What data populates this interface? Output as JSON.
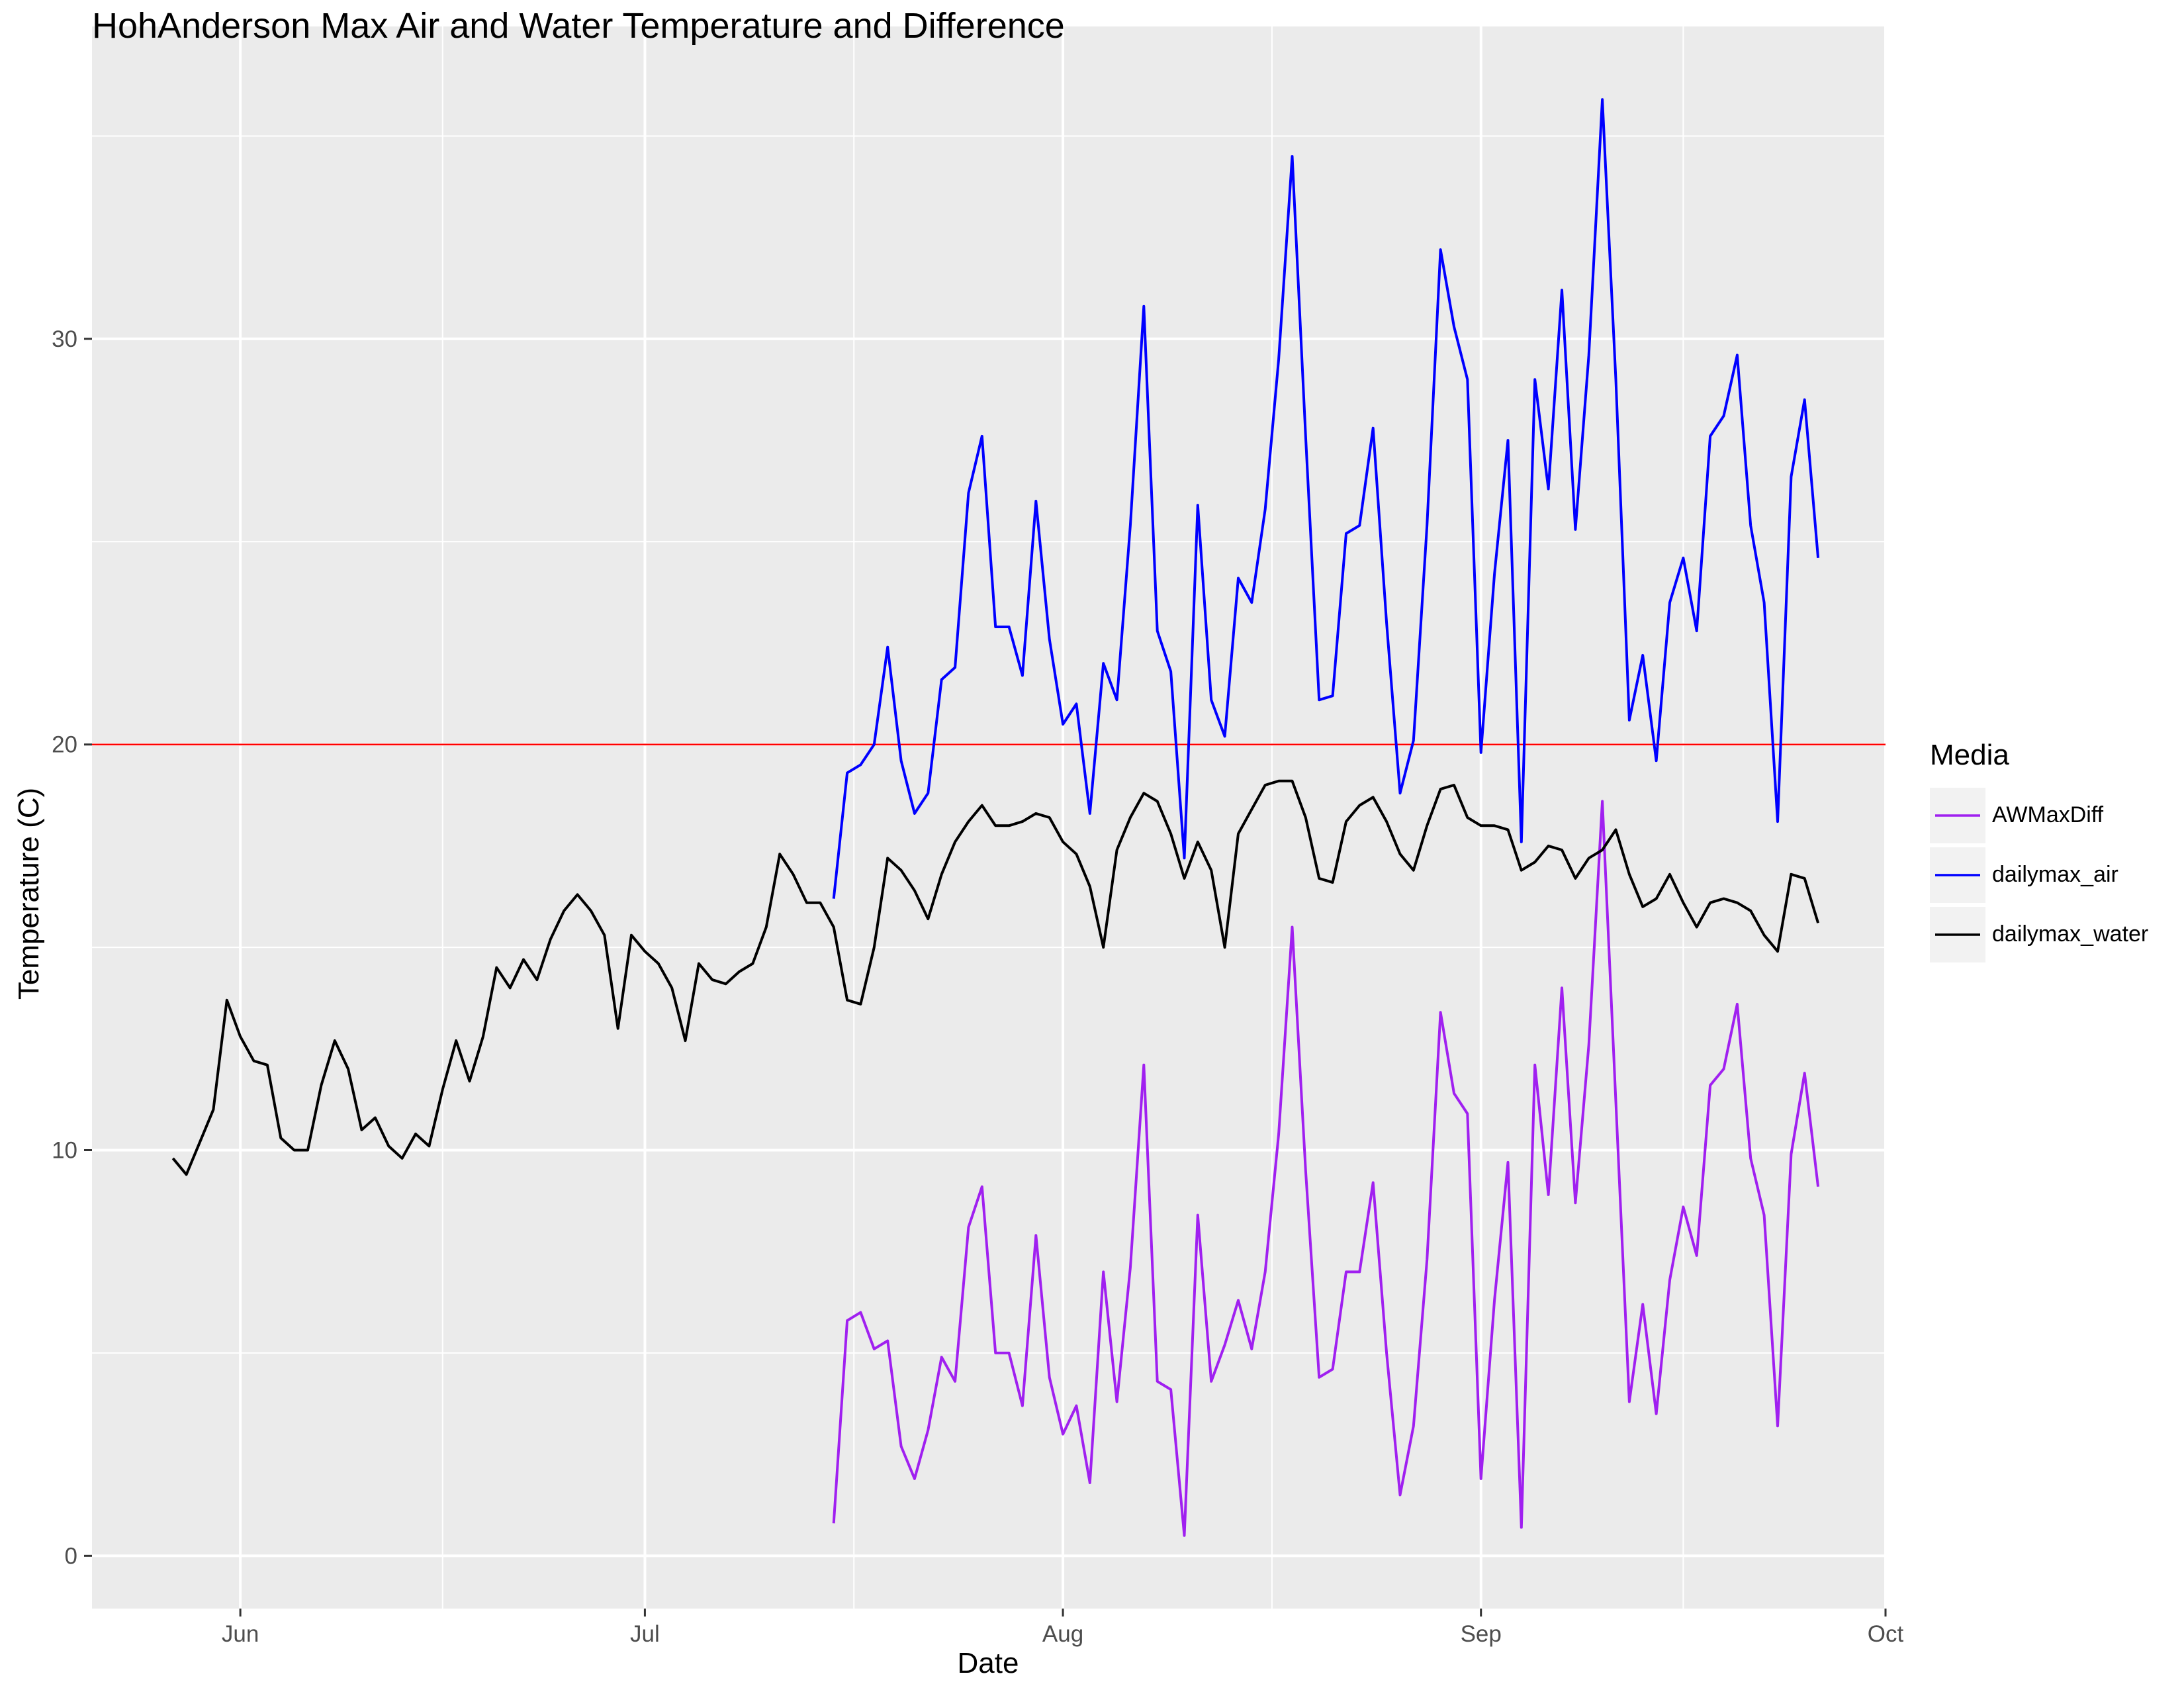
{
  "chart_data": {
    "type": "line",
    "title": "HohAnderson Max Air and Water Temperature and Difference",
    "xlabel": "Date",
    "ylabel": "Temperature (C)",
    "legend_title": "Media",
    "legend_position": "right",
    "grid": true,
    "x_ticks": [
      "Jun",
      "Jul",
      "Aug",
      "Sep",
      "Oct"
    ],
    "y_ticks": [
      0,
      10,
      20,
      30
    ],
    "xlim": [
      "2023-05-21",
      "2023-10-01"
    ],
    "ylim": [
      -1.3,
      37.7
    ],
    "reference_line": {
      "y": 20,
      "color": "#FF0000"
    },
    "series": [
      {
        "name": "AWMaxDiff",
        "color": "#A020F0",
        "start": "2023-07-15",
        "values": [
          0.8,
          5.8,
          6.0,
          5.1,
          5.3,
          2.7,
          1.9,
          3.1,
          4.9,
          4.3,
          8.1,
          9.1,
          5.0,
          5.0,
          3.7,
          7.9,
          4.4,
          3.0,
          3.7,
          1.8,
          7.0,
          3.8,
          7.1,
          12.1,
          4.3,
          4.1,
          0.5,
          8.4,
          4.3,
          5.2,
          6.3,
          5.1,
          7.0,
          10.4,
          15.5,
          9.5,
          4.4,
          4.6,
          7.0,
          7.0,
          9.2,
          5.0,
          1.5,
          3.2,
          7.3,
          13.4,
          11.4,
          10.9,
          1.9,
          6.3,
          9.7,
          0.7,
          12.1,
          8.9,
          14.0,
          8.7,
          12.6,
          18.6,
          11.2,
          3.8,
          6.2,
          3.5,
          6.8,
          8.6,
          7.4,
          11.6,
          12.0,
          13.6,
          9.8,
          8.4,
          3.2,
          9.9,
          11.9,
          9.1
        ]
      },
      {
        "name": "dailymax_air",
        "color": "#0000FF",
        "start": "2023-07-15",
        "values": [
          16.2,
          19.3,
          19.5,
          20.0,
          22.4,
          19.6,
          18.3,
          18.8,
          21.6,
          21.9,
          26.2,
          27.6,
          22.9,
          22.9,
          21.7,
          26.0,
          22.6,
          20.5,
          21.0,
          18.3,
          22.0,
          21.1,
          25.4,
          30.8,
          22.8,
          21.8,
          17.2,
          25.9,
          21.1,
          20.2,
          24.1,
          23.5,
          25.8,
          29.5,
          34.5,
          27.6,
          21.1,
          21.2,
          25.2,
          25.4,
          27.8,
          23.0,
          18.8,
          20.1,
          25.4,
          32.2,
          30.3,
          29.0,
          19.8,
          24.2,
          27.5,
          17.6,
          29.0,
          26.3,
          31.2,
          25.3,
          29.6,
          35.9,
          29.0,
          20.6,
          22.2,
          19.6,
          23.5,
          24.6,
          22.8,
          27.6,
          28.1,
          29.6,
          25.4,
          23.5,
          18.1,
          26.6,
          28.5,
          24.6
        ]
      },
      {
        "name": "dailymax_water",
        "color": "#000000",
        "start": "2023-05-27",
        "values": [
          9.8,
          9.4,
          10.2,
          11.0,
          13.7,
          12.8,
          12.2,
          12.1,
          10.3,
          10.0,
          10.0,
          11.6,
          12.7,
          12.0,
          10.5,
          10.8,
          10.1,
          9.8,
          10.4,
          10.1,
          11.5,
          12.7,
          11.7,
          12.8,
          14.5,
          14.0,
          14.7,
          14.2,
          15.2,
          15.9,
          16.3,
          15.9,
          15.3,
          13.0,
          15.3,
          14.9,
          14.6,
          14.0,
          12.7,
          14.6,
          14.2,
          14.1,
          14.4,
          14.6,
          15.5,
          17.3,
          16.8,
          16.1,
          16.1,
          15.5,
          13.7,
          13.6,
          15.0,
          17.2,
          16.9,
          16.4,
          15.7,
          16.8,
          17.6,
          18.1,
          18.5,
          18.0,
          18.0,
          18.1,
          18.3,
          18.2,
          17.6,
          17.3,
          16.5,
          15.0,
          17.4,
          18.2,
          18.8,
          18.6,
          17.8,
          16.7,
          17.6,
          16.9,
          15.0,
          17.8,
          18.4,
          19.0,
          19.1,
          19.1,
          18.2,
          16.7,
          16.6,
          18.1,
          18.5,
          18.7,
          18.1,
          17.3,
          16.9,
          18.0,
          18.9,
          19.0,
          18.2,
          18.0,
          18.0,
          17.9,
          16.9,
          17.1,
          17.5,
          17.4,
          16.7,
          17.2,
          17.4,
          17.9,
          16.8,
          16.0,
          16.2,
          16.8,
          16.1,
          15.5,
          16.1,
          16.2,
          16.1,
          15.9,
          15.3,
          14.9,
          16.8,
          16.7,
          15.6
        ]
      }
    ]
  }
}
